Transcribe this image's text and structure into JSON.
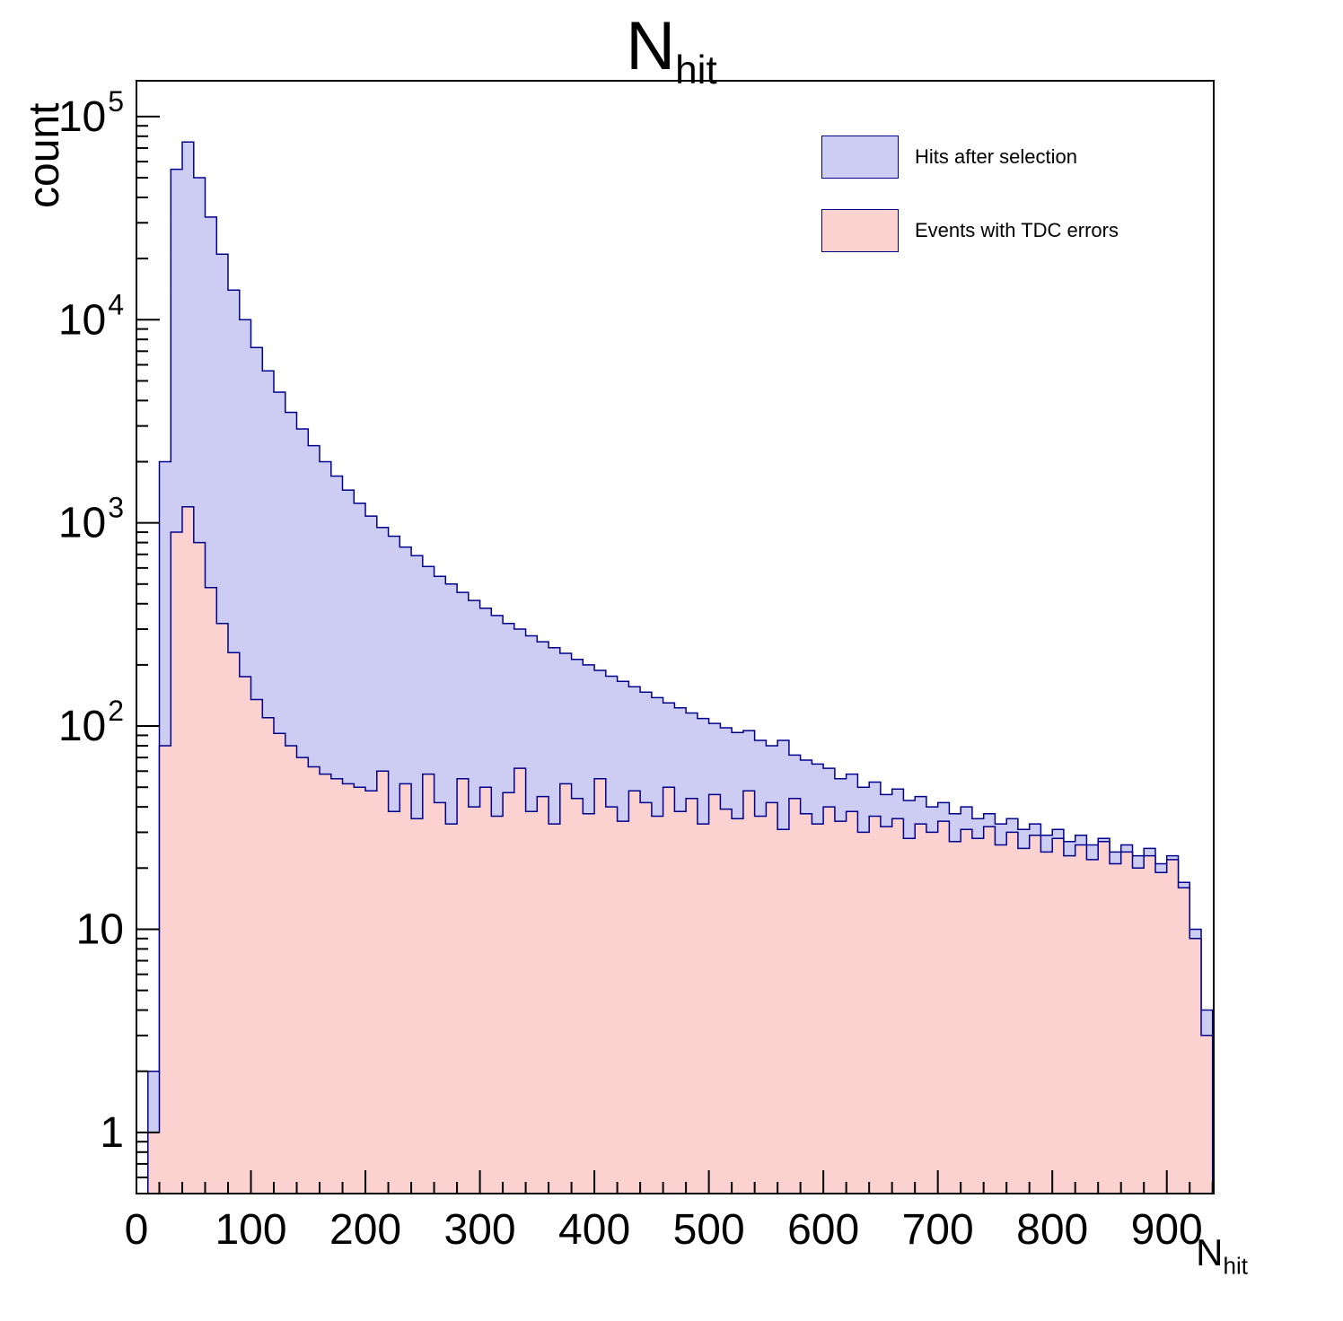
{
  "chart_data": {
    "type": "area",
    "yscale": "log",
    "grid": false,
    "title_main": "N",
    "title_sub": "hit",
    "ylabel": "count",
    "xlabel_main": "N",
    "xlabel_sub": "hit",
    "x_start": 0,
    "x_step": 10,
    "x_max": 941,
    "ylim": [
      0.5,
      150000
    ],
    "x_ticks": [
      0,
      100,
      200,
      300,
      400,
      500,
      600,
      700,
      800,
      900
    ],
    "y_tick_exponents": [
      0,
      1,
      2,
      3,
      4,
      5
    ],
    "legend_position": "top-right",
    "series": [
      {
        "name": "Hits after selection",
        "fill": "#cdcdf4",
        "stroke": "#00008c",
        "values": [
          0,
          2,
          2000,
          55000,
          75000,
          50000,
          32000,
          21000,
          14000,
          10000,
          7300,
          5600,
          4400,
          3500,
          2900,
          2400,
          2000,
          1700,
          1450,
          1250,
          1080,
          950,
          860,
          760,
          690,
          610,
          545,
          500,
          455,
          415,
          380,
          350,
          320,
          300,
          278,
          260,
          243,
          228,
          213,
          200,
          188,
          176,
          166,
          156,
          147,
          138,
          130,
          123,
          116,
          109,
          103,
          98,
          93,
          95,
          85,
          80,
          85,
          72,
          68,
          65,
          62,
          55,
          58,
          50,
          53,
          46,
          49,
          43,
          45,
          40,
          42,
          37,
          40,
          35,
          37,
          33,
          35,
          31,
          33,
          29,
          31,
          27,
          29,
          26,
          28,
          24,
          26,
          23,
          25,
          21,
          23,
          17,
          10,
          4,
          1
        ]
      },
      {
        "name": "Events with TDC errors",
        "fill": "#fcd2d0",
        "stroke": "#00008c",
        "values": [
          0,
          1,
          80,
          900,
          1200,
          800,
          480,
          320,
          230,
          175,
          135,
          110,
          92,
          80,
          70,
          63,
          58,
          55,
          52,
          50,
          48,
          60,
          38,
          52,
          35,
          58,
          42,
          33,
          55,
          40,
          50,
          36,
          47,
          62,
          38,
          45,
          33,
          52,
          44,
          37,
          55,
          40,
          34,
          48,
          42,
          36,
          50,
          38,
          44,
          33,
          46,
          39,
          35,
          48,
          36,
          42,
          31,
          44,
          37,
          33,
          40,
          34,
          38,
          30,
          36,
          32,
          35,
          28,
          33,
          30,
          34,
          27,
          31,
          28,
          32,
          26,
          30,
          25,
          29,
          24,
          28,
          23,
          26,
          22,
          27,
          21,
          24,
          20,
          23,
          19,
          22,
          16,
          9,
          3,
          0
        ]
      }
    ]
  }
}
